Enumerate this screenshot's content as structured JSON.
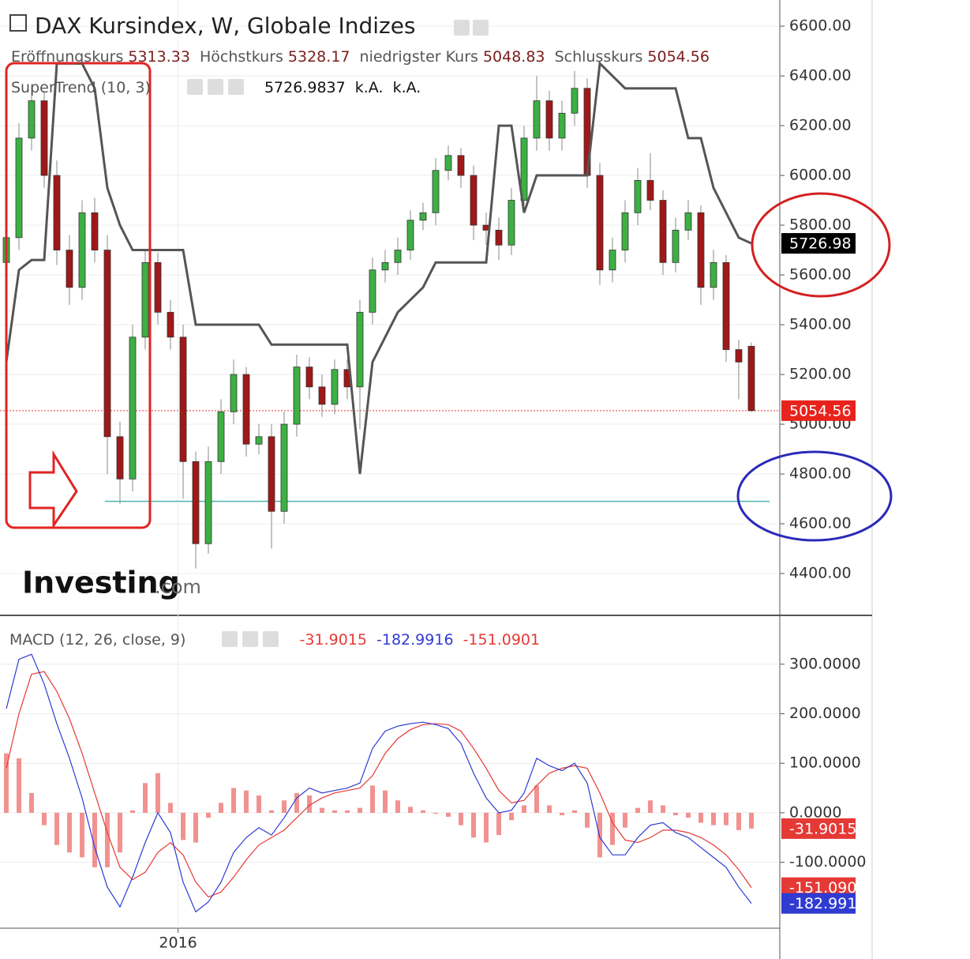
{
  "chart_data": [
    {
      "type": "candlestick",
      "title": "DAX Kursindex, W, Globale Indizes",
      "ohlc_labels": [
        "Eröffnungskurs",
        "Höchstkurs",
        "niedrigster Kurs",
        "Schlusskurs"
      ],
      "up_color": "#3cb043",
      "down_color": "#a01818",
      "open": [
        5650,
        5750,
        6150,
        6300,
        6000,
        5700,
        5550,
        5850,
        5700,
        4950,
        4780,
        5350,
        5650,
        5450,
        5350,
        4850,
        4520,
        4850,
        5050,
        5200,
        4920,
        4950,
        4650,
        5000,
        5230,
        5150,
        5080,
        5220,
        5150,
        5450,
        5620,
        5650,
        5700,
        5820,
        5850,
        6020,
        6080,
        6000,
        5800,
        5780,
        5720,
        5900,
        6150,
        6300,
        6150,
        6250,
        6350,
        6000,
        5620,
        5700,
        5850,
        5980,
        5900,
        5650,
        5780,
        5850,
        5550,
        5650,
        5300,
        5313.33
      ],
      "high": [
        5810,
        6210,
        6360,
        6340,
        6060,
        5760,
        5900,
        5910,
        5760,
        5010,
        5400,
        5700,
        5690,
        5500,
        5400,
        4890,
        4910,
        5100,
        5260,
        5230,
        5000,
        5000,
        5050,
        5280,
        5270,
        5200,
        5260,
        5260,
        5500,
        5670,
        5700,
        5750,
        5860,
        5890,
        6070,
        6120,
        6110,
        6040,
        5850,
        5830,
        5950,
        6200,
        6400,
        6340,
        6300,
        6420,
        6390,
        6050,
        5750,
        5900,
        6030,
        6090,
        5940,
        5830,
        5900,
        5880,
        5700,
        5680,
        5340,
        5328.17
      ],
      "low": [
        5590,
        5700,
        6100,
        5950,
        5640,
        5480,
        5500,
        5650,
        4800,
        4680,
        4730,
        5300,
        5400,
        5300,
        4700,
        4420,
        4480,
        4800,
        5000,
        4870,
        4880,
        4500,
        4600,
        4950,
        5100,
        5030,
        5040,
        5100,
        4980,
        5400,
        5570,
        5600,
        5660,
        5780,
        5800,
        5980,
        5950,
        5740,
        5720,
        5660,
        5680,
        5860,
        6100,
        6100,
        6100,
        6200,
        5950,
        5560,
        5570,
        5650,
        5800,
        5860,
        5600,
        5610,
        5740,
        5480,
        5500,
        5250,
        5100,
        5048.83
      ],
      "close": [
        5750,
        6150,
        6300,
        6000,
        5700,
        5550,
        5850,
        5700,
        4950,
        4780,
        5350,
        5650,
        5450,
        5350,
        4850,
        4520,
        4850,
        5050,
        5200,
        4920,
        4950,
        4650,
        5000,
        5230,
        5150,
        5080,
        5220,
        5150,
        5450,
        5620,
        5650,
        5700,
        5820,
        5850,
        6020,
        6080,
        6000,
        5800,
        5780,
        5720,
        5900,
        6150,
        6300,
        6150,
        6250,
        6350,
        6000,
        5620,
        5700,
        5850,
        5980,
        5900,
        5650,
        5780,
        5850,
        5550,
        5650,
        5300,
        5250,
        5054.56
      ],
      "supertrend": {
        "name": "SuperTrend (10, 3)",
        "color": "#555555",
        "values": [
          5250,
          5620,
          5660,
          5660,
          6450,
          6450,
          6450,
          6350,
          5950,
          5800,
          5700,
          5700,
          5700,
          5700,
          5700,
          5400,
          5400,
          5400,
          5400,
          5400,
          5400,
          5320,
          5320,
          5320,
          5320,
          5320,
          5320,
          5320,
          4800,
          5250,
          5350,
          5450,
          5500,
          5550,
          5650,
          5650,
          5650,
          5650,
          5650,
          6200,
          6200,
          5850,
          6000,
          6000,
          6000,
          6000,
          6000,
          6450,
          6400,
          6350,
          6350,
          6350,
          6350,
          6350,
          6150,
          6150,
          5950,
          5850,
          5750,
          5726.9837
        ],
        "tag": 5726.98
      },
      "na_labels": [
        "k.A.",
        "k.A."
      ],
      "support_line": 4690,
      "support_color": "#4db6ac",
      "watermark": "Investing",
      "watermark_suffix": ".com",
      "xlim": [
        -0.5,
        61.25
      ],
      "xticks": [
        {
          "value": 13.6,
          "label": "2016"
        }
      ],
      "ylim": [
        4235,
        6705
      ],
      "yticks": [
        {
          "value": 4400,
          "label": "4400.00"
        },
        {
          "value": 4600,
          "label": "4600.00"
        },
        {
          "value": 4800,
          "label": "4800.00"
        },
        {
          "value": 5000,
          "label": "5000.00"
        },
        {
          "value": 5200,
          "label": "5200.00"
        },
        {
          "value": 5400,
          "label": "5400.00"
        },
        {
          "value": 5600,
          "label": "5600.00"
        },
        {
          "value": 5800,
          "label": "5800.00"
        },
        {
          "value": 6000,
          "label": "6000.00"
        },
        {
          "value": 6200,
          "label": "6200.00"
        },
        {
          "value": 6400,
          "label": "6400.00"
        },
        {
          "value": 6600,
          "label": "6600.00"
        }
      ],
      "grid": true
    },
    {
      "type": "macd",
      "title": "MACD (12, 26, close, 9)",
      "histogram": {
        "color": "#e53935",
        "values": [
          120,
          110,
          40,
          -25,
          -65,
          -80,
          -90,
          -110,
          -110,
          -80,
          5,
          60,
          80,
          20,
          -55,
          -60,
          -10,
          20,
          50,
          45,
          35,
          5,
          25,
          40,
          35,
          10,
          5,
          5,
          10,
          55,
          45,
          25,
          12,
          5,
          -2,
          -8,
          -25,
          -50,
          -60,
          -45,
          -15,
          15,
          55,
          15,
          -5,
          5,
          -30,
          -90,
          -65,
          -30,
          10,
          25,
          15,
          -5,
          -10,
          -20,
          -25,
          -25,
          -35,
          -31.9015
        ]
      },
      "macd": {
        "color": "#2f3bd1",
        "values": [
          210,
          310,
          320,
          260,
          180,
          110,
          30,
          -70,
          -150,
          -190,
          -130,
          -60,
          0,
          -40,
          -140,
          -200,
          -180,
          -140,
          -80,
          -50,
          -30,
          -45,
          -10,
          30,
          50,
          40,
          45,
          50,
          60,
          130,
          165,
          175,
          180,
          183,
          178,
          170,
          140,
          80,
          30,
          0,
          5,
          40,
          110,
          95,
          85,
          100,
          60,
          -50,
          -85,
          -85,
          -50,
          -25,
          -20,
          -40,
          -50,
          -70,
          -90,
          -110,
          -150,
          -182.9916
        ]
      },
      "signal": {
        "color": "#e53935",
        "values": [
          90,
          200,
          280,
          285,
          245,
          190,
          120,
          40,
          -40,
          -110,
          -135,
          -120,
          -80,
          -60,
          -85,
          -140,
          -170,
          -160,
          -130,
          -95,
          -65,
          -50,
          -35,
          -10,
          15,
          30,
          40,
          45,
          50,
          75,
          120,
          150,
          168,
          178,
          180,
          178,
          165,
          130,
          90,
          45,
          20,
          25,
          55,
          80,
          90,
          95,
          90,
          40,
          -20,
          -55,
          -60,
          -50,
          -35,
          -35,
          -40,
          -50,
          -65,
          -85,
          -115,
          -151.0901
        ]
      },
      "ylim": [
        -233,
        397
      ],
      "yticks": [
        {
          "value": -100,
          "label": "-100.0000"
        },
        {
          "value": 0,
          "label": "0.0000"
        },
        {
          "value": 100,
          "label": "100.0000"
        },
        {
          "value": 200,
          "label": "200.0000"
        },
        {
          "value": 300,
          "label": "300.0000"
        }
      ],
      "grid": true
    }
  ]
}
